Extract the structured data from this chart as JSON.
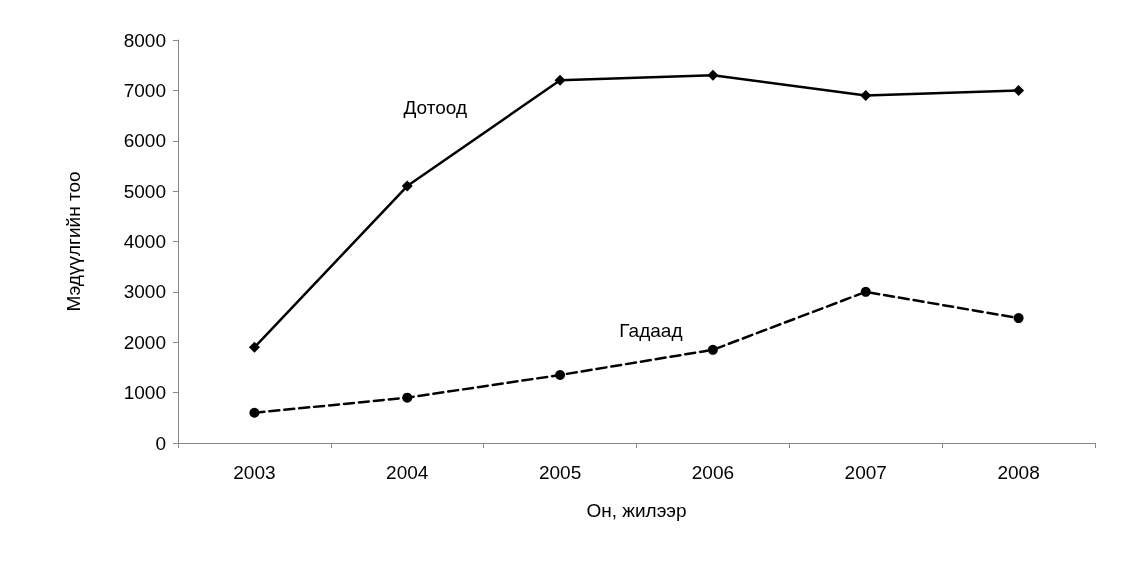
{
  "chart_data": {
    "type": "line",
    "xlabel": "Он, жилээр",
    "ylabel": "Мэдүүлгийн тоо",
    "categories": [
      "2003",
      "2004",
      "2005",
      "2006",
      "2007",
      "2008"
    ],
    "series": [
      {
        "name": "Дотоод",
        "color": "#000000",
        "values": [
          1900,
          5100,
          7200,
          7300,
          6900,
          7000
        ],
        "marker": "diamond",
        "line_style": "solid"
      },
      {
        "name": "Гадаад",
        "color": "#000000",
        "values": [
          600,
          900,
          1350,
          1850,
          3000,
          2480
        ],
        "marker": "circle",
        "line_style": "dashed"
      }
    ],
    "ylim": [
      0,
      8000
    ],
    "yticks": [
      0,
      1000,
      2000,
      3000,
      4000,
      5000,
      6000,
      7000,
      8000
    ],
    "grid": false,
    "legend": false
  }
}
